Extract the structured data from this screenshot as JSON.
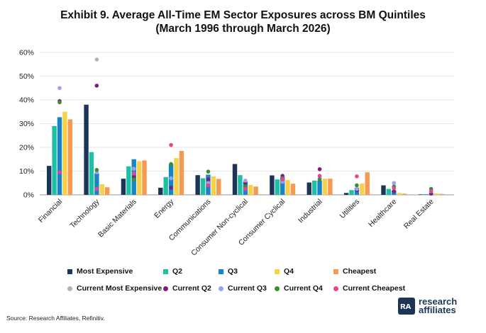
{
  "title": {
    "line1": "Exhibit 9. Average All-Time EM Sector Exposures across BM Quintiles",
    "line2": "(March 1996 through March 2026)"
  },
  "source": "Source: Research Affiliates, Refinitiv.",
  "logo": {
    "mark": "ʀᴀ",
    "line1": "research",
    "line2": "affiliates"
  },
  "colors": {
    "most_expensive": "#1c3557",
    "q2": "#1fbfa6",
    "q3": "#1585c8",
    "q4": "#f7d14a",
    "cheapest": "#f59a52",
    "current_most_expensive": "#b3b3b3",
    "current_q2": "#7a1f7a",
    "current_q3": "#9aa2ee",
    "current_q4": "#3b8f2e",
    "current_cheapest": "#e8458c"
  },
  "chart_data": {
    "type": "bar",
    "title": "Exhibit 9. Average All-Time EM Sector Exposures across BM Quintiles (March 1996 through March 2026)",
    "categories": [
      "Financial",
      "Technology",
      "Basic Materials",
      "Energy",
      "Communications",
      "Consumer Non-cyclical",
      "Consumer Cyclical",
      "Industrial",
      "Utilities",
      "Healthcare",
      "Real Estate"
    ],
    "ylim": [
      0,
      60
    ],
    "yticks": [
      "0%",
      "10%",
      "20%",
      "30%",
      "40%",
      "50%",
      "60%"
    ],
    "grid": true,
    "legend_position": "bottom",
    "series": [
      {
        "name": "Most Expensive",
        "kind": "bar",
        "color": "#1c3557",
        "values": [
          12.2,
          38,
          6.8,
          3,
          8.3,
          13,
          8.2,
          5.2,
          0.8,
          4,
          0.2
        ]
      },
      {
        "name": "Q2",
        "kind": "bar",
        "color": "#1fbfa6",
        "values": [
          29,
          18,
          12,
          7.5,
          7,
          8.3,
          6.5,
          6,
          2,
          2.5,
          0.3
        ]
      },
      {
        "name": "Q3",
        "kind": "bar",
        "color": "#1585c8",
        "values": [
          32.7,
          9,
          15,
          13,
          8.5,
          5.5,
          7.5,
          6,
          3,
          1.8,
          0.4
        ]
      },
      {
        "name": "Q4",
        "kind": "bar",
        "color": "#f7d14a",
        "values": [
          35,
          4.5,
          14.2,
          15.5,
          7.8,
          4.2,
          6.3,
          6.8,
          4.8,
          0.8,
          0.6
        ]
      },
      {
        "name": "Cheapest",
        "kind": "bar",
        "color": "#f59a52",
        "values": [
          31.8,
          3.2,
          14.5,
          18.5,
          6.7,
          3.5,
          4.7,
          6.8,
          9.5,
          0.5,
          0.4
        ]
      },
      {
        "name": "Current Most Expensive",
        "kind": "dot",
        "color": "#b3b3b3",
        "values": [
          null,
          57,
          null,
          null,
          null,
          null,
          null,
          null,
          null,
          null,
          null
        ]
      },
      {
        "name": "Current Q2",
        "kind": "dot",
        "color": "#7a1f7a",
        "values": [
          39.5,
          46,
          7.5,
          3,
          6.5,
          5,
          8,
          10.8,
          2,
          1.5,
          0.5
        ]
      },
      {
        "name": "Current Q3",
        "kind": "dot",
        "color": "#9aa2ee",
        "values": [
          45,
          9.5,
          11,
          7,
          5,
          6,
          5.5,
          7,
          2.5,
          5,
          1.5
        ]
      },
      {
        "name": "Current Q4",
        "kind": "dot",
        "color": "#3b8f2e",
        "values": [
          39,
          10.5,
          6.5,
          13,
          9.8,
          3.5,
          7,
          6.5,
          4,
          3.5,
          2.5
        ]
      },
      {
        "name": "Current Cheapest",
        "kind": "dot",
        "color": "#e8458c",
        "values": [
          9.5,
          2.5,
          9,
          21,
          4,
          2.5,
          6.5,
          8,
          7.8,
          2.8,
          1.5
        ]
      }
    ]
  }
}
